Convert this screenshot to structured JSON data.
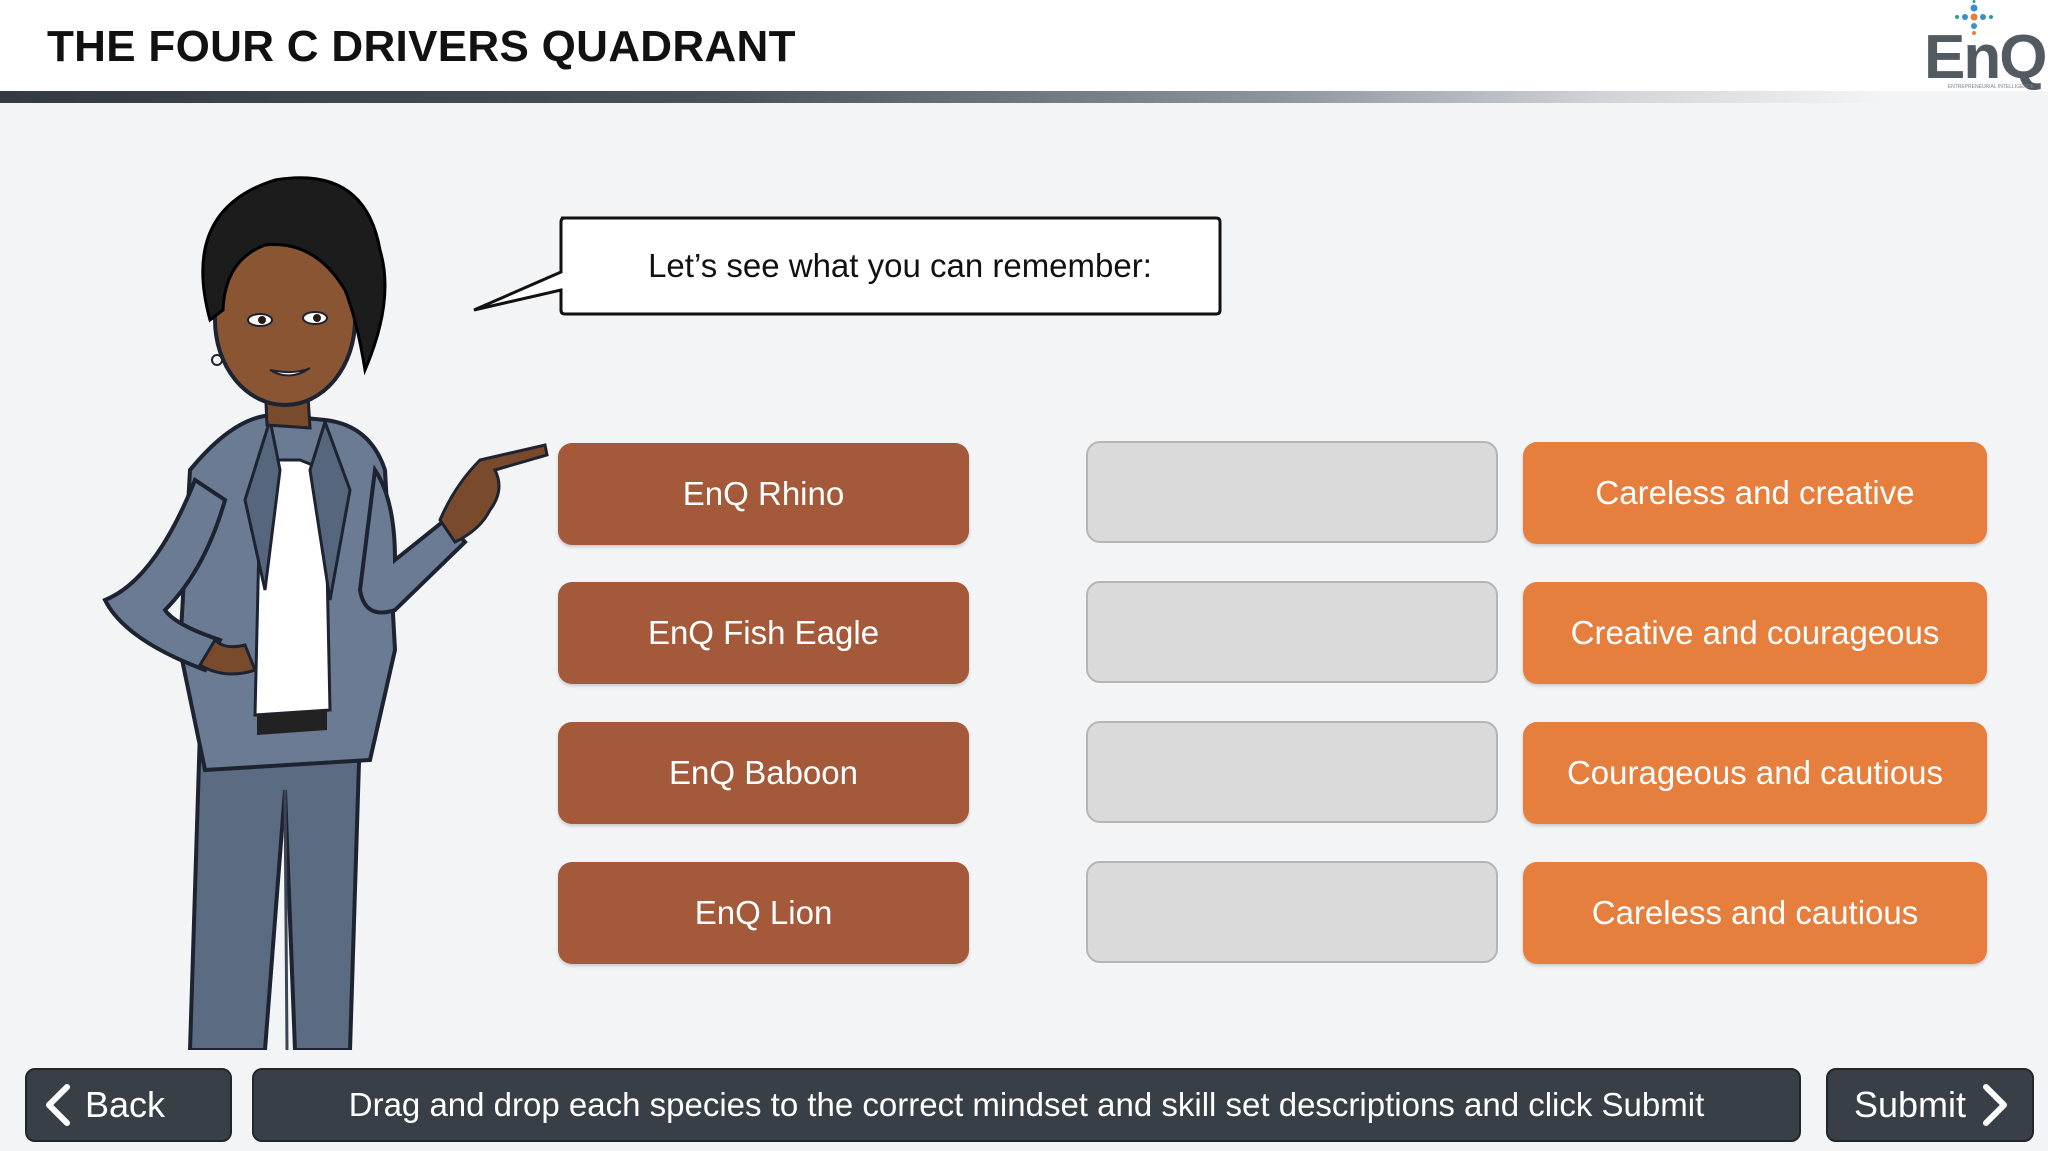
{
  "header": {
    "title": "THE FOUR C DRIVERS QUADRANT",
    "logo": {
      "text": "EnQ",
      "subtext": "ENTREPRENEURIAL INTELLIGENCE"
    }
  },
  "speech_bubble": {
    "text": "Let’s see what you can remember:"
  },
  "species": [
    {
      "label": "EnQ Rhino"
    },
    {
      "label": "EnQ Fish Eagle"
    },
    {
      "label": "EnQ Baboon"
    },
    {
      "label": "EnQ Lion"
    }
  ],
  "drop_targets": [
    {},
    {},
    {},
    {}
  ],
  "descriptions": [
    {
      "label": "Careless and creative"
    },
    {
      "label": "Creative and courageous"
    },
    {
      "label": "Courageous and cautious"
    },
    {
      "label": "Careless and cautious"
    }
  ],
  "footer": {
    "back_label": "Back",
    "instruction": "Drag and drop each species to the correct mindset and skill set descriptions and click Submit",
    "submit_label": "Submit"
  },
  "colors": {
    "species_button": "#a45a3a",
    "description_button": "#e67f3d",
    "drop_slot": "#dadada",
    "footer_button": "#393f46",
    "background": "#f3f4f6"
  },
  "icons": {
    "back": "chevron-left-icon",
    "submit": "chevron-right-icon",
    "logo_dots": "dot-cross-icon"
  }
}
